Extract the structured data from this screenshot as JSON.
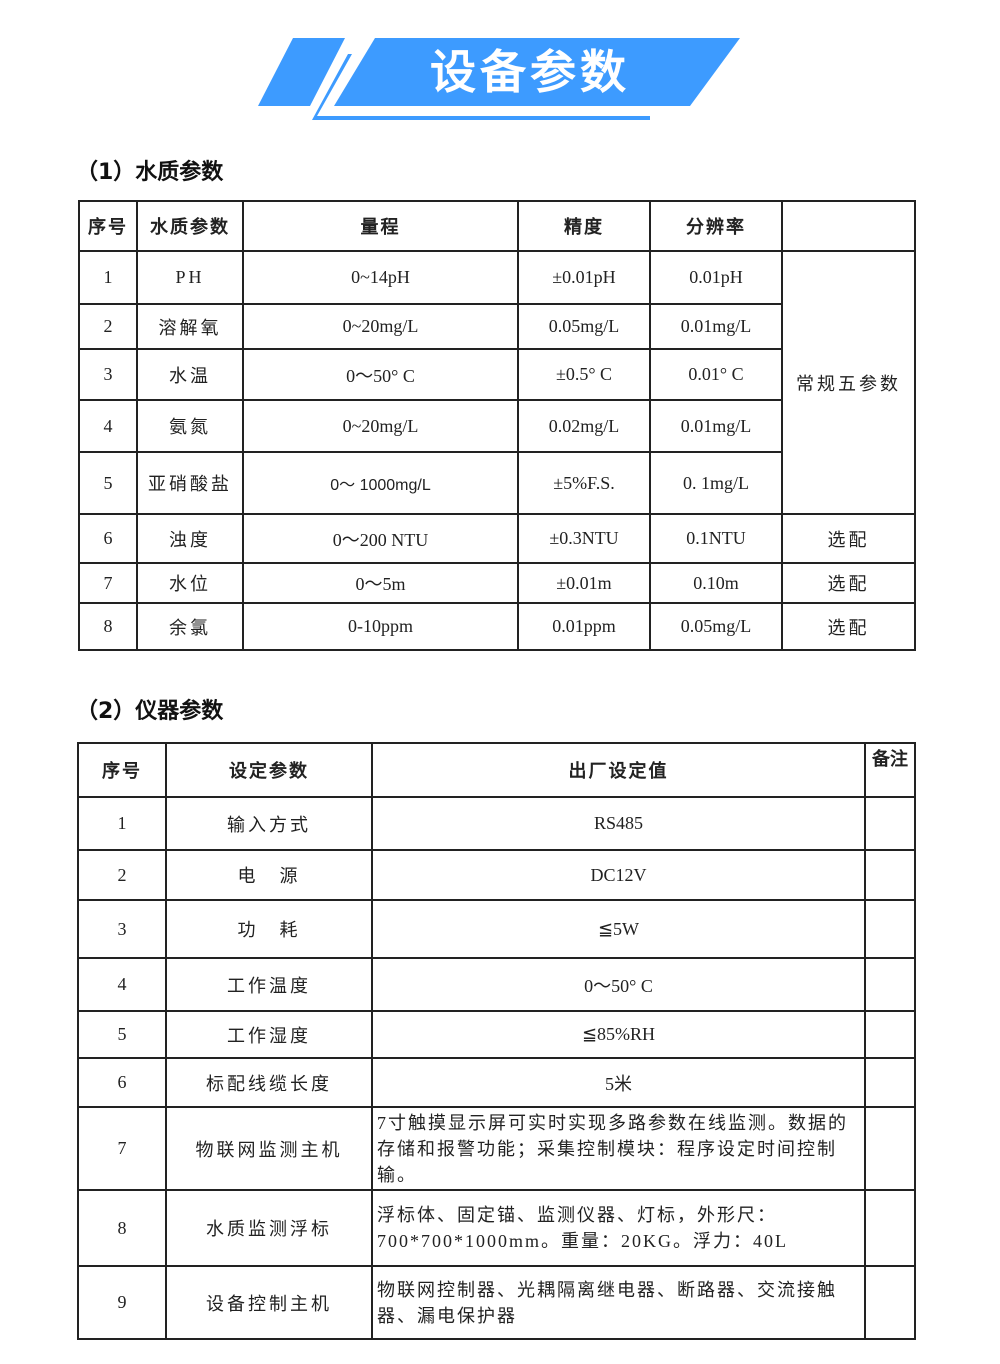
{
  "banner": {
    "title": "设备参数",
    "color": "#3d9bff"
  },
  "section1": {
    "title": "（1）水质参数",
    "headers": [
      "序号",
      "水质参数",
      "量程",
      "精度",
      "分辨率",
      ""
    ],
    "rows": [
      [
        "1",
        "PH",
        "0~14pH",
        "±0.01pH",
        "0.01pH"
      ],
      [
        "2",
        "溶解氧",
        "0~20mg/L",
        "0.05mg/L",
        "0.01mg/L"
      ],
      [
        "3",
        "水温",
        "0～50° C",
        "±0.5° C",
        "0.01° C"
      ],
      [
        "4",
        "氨氮",
        "0~20mg/L",
        "0.02mg/L",
        "0.01mg/L"
      ],
      [
        "5",
        "亚硝酸盐",
        "0～ 1000mg/L",
        "±5%F.S.",
        "0. 1mg/L"
      ],
      [
        "6",
        "浊度",
        "0～200 NTU",
        "±0.3NTU",
        "0.1NTU",
        "选配"
      ],
      [
        "7",
        "水位",
        "0～5m",
        "±0.01m",
        "0.10m",
        "选配"
      ],
      [
        "8",
        "余氯",
        "0-10ppm",
        "0.01ppm",
        "0.05mg/L",
        "选配"
      ]
    ],
    "group_note": "常规五参数"
  },
  "section2": {
    "title": "（2）仪器参数",
    "headers": [
      "序号",
      "设定参数",
      "出厂设定值",
      "备注"
    ],
    "rows": [
      [
        "1",
        "输入方式",
        "RS485"
      ],
      [
        "2",
        "电　源",
        "DC12V"
      ],
      [
        "3",
        "功　耗",
        "≦5W"
      ],
      [
        "4",
        "工作温度",
        "0～50° C"
      ],
      [
        "5",
        "工作湿度",
        "≦85%RH"
      ],
      [
        "6",
        "标配线缆长度",
        "5米"
      ],
      [
        "7",
        "物联网监测主机",
        "7寸触摸显示屏可实时实现多路参数在线监测。数据的存储和报警功能；采集控制模块：程序设定时间控制输。"
      ],
      [
        "8",
        "水质监测浮标",
        "浮标体、固定锚、监测仪器、灯标，外形尺：700*700*1000mm。重量：20KG。浮力：40L"
      ],
      [
        "9",
        "设备控制主机",
        "物联网控制器、光耦隔离继电器、断路器、交流接触器、漏电保护器"
      ]
    ]
  }
}
